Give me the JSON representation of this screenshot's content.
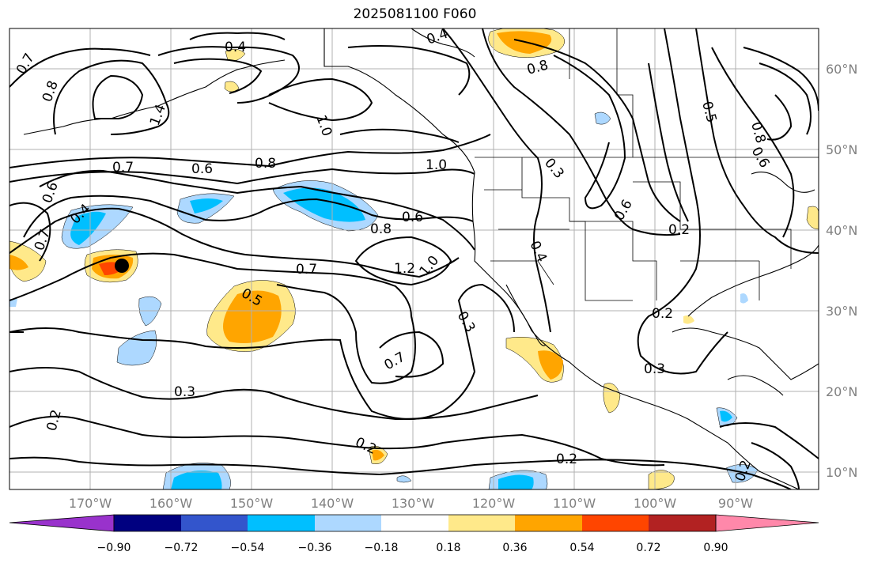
{
  "title": "2025081100 F060",
  "lon_labels": [
    "170°W",
    "160°W",
    "150°W",
    "140°W",
    "130°W",
    "120°W",
    "110°W",
    "100°W",
    "90°W"
  ],
  "lat_labels": [
    "60°N",
    "50°N",
    "40°N",
    "30°N",
    "20°N",
    "10°N"
  ],
  "contour_labels": [
    "0.4",
    "0.7",
    "0.8",
    "1.0",
    "1.4",
    "0.7",
    "0.6",
    "0.8",
    "1.0",
    "0.6",
    "0.8",
    "0.4",
    "0.6",
    "0.7",
    "0.7",
    "1.2",
    "1.0",
    "0.5",
    "0.7",
    "0.3",
    "0.3",
    "0.2",
    "0.2",
    "0.2",
    "0.2",
    "0.3",
    "0.2",
    "0.3",
    "0.4",
    "0.4",
    "0.6",
    "0.8",
    "0.5",
    "0.2",
    "0.8",
    "0.6"
  ],
  "colorbar": {
    "ticks": [
      "−0.90",
      "−0.72",
      "−0.54",
      "−0.36",
      "−0.18",
      "0.18",
      "0.36",
      "0.54",
      "0.72",
      "0.90"
    ],
    "colors": [
      "#9932cc",
      "#000080",
      "#3355cc",
      "#00bfff",
      "#add8ff",
      "#ffffff",
      "#ffe98a",
      "#ffa500",
      "#ff4500",
      "#b22222",
      "#ff88aa"
    ]
  },
  "marker": {
    "label": "storm-center",
    "lon": -165.5,
    "lat": 35.5
  }
}
